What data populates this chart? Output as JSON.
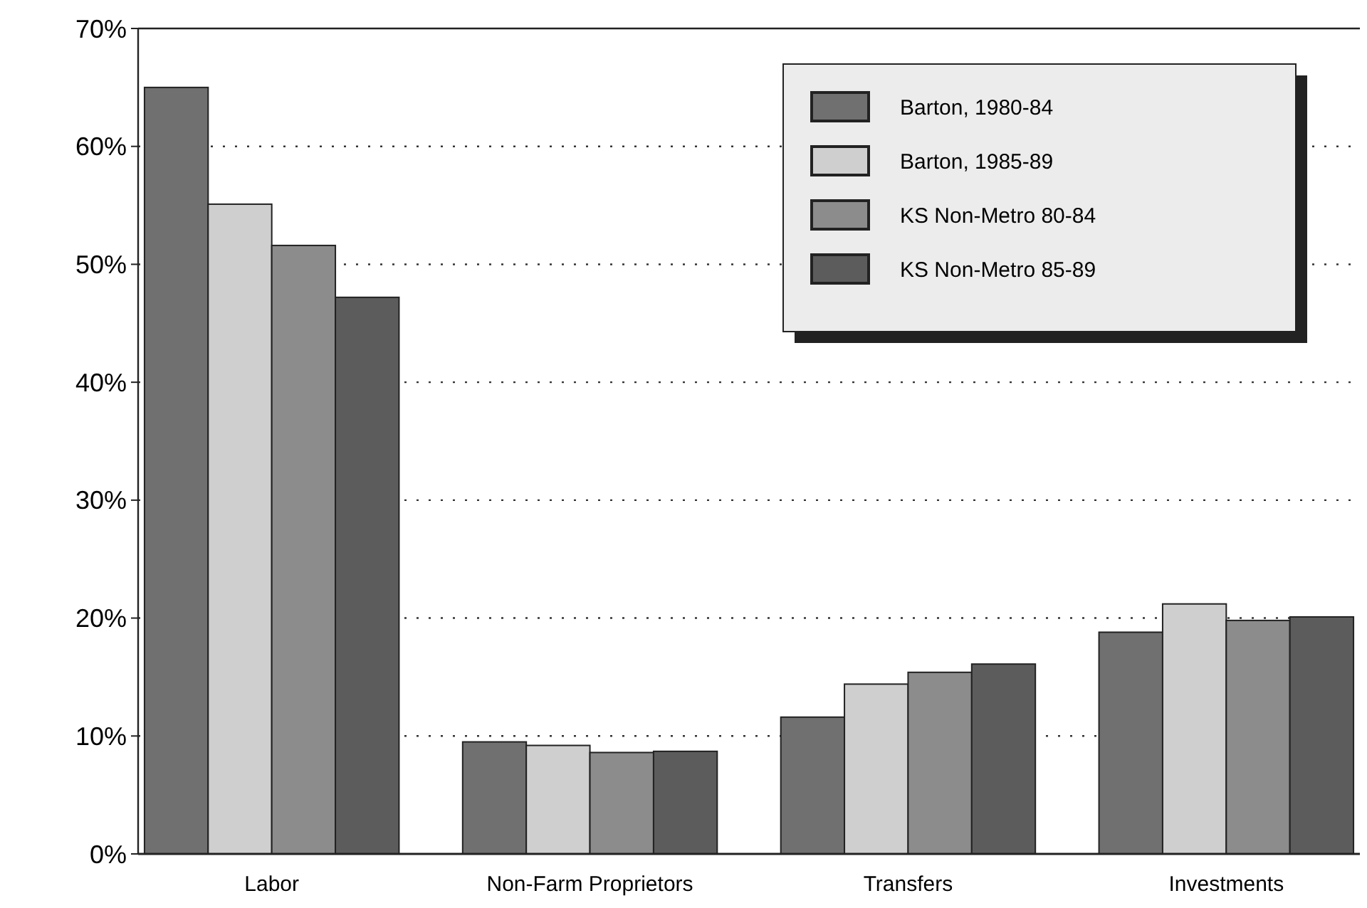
{
  "chart_data": {
    "type": "bar",
    "categories": [
      "Labor",
      "Non-Farm Proprietors",
      "Transfers",
      "Investments"
    ],
    "series": [
      {
        "name": "Barton, 1980-84",
        "color": "#707070",
        "values": [
          65.0,
          9.5,
          11.6,
          18.8
        ]
      },
      {
        "name": "Barton, 1985-89",
        "color": "#cfcfcf",
        "values": [
          55.1,
          9.2,
          14.4,
          21.2
        ]
      },
      {
        "name": "KS Non-Metro 80-84",
        "color": "#8c8c8c",
        "values": [
          51.6,
          8.6,
          15.4,
          19.8
        ]
      },
      {
        "name": "KS Non-Metro 85-89",
        "color": "#5c5c5c",
        "values": [
          47.2,
          8.7,
          16.1,
          20.1
        ]
      }
    ],
    "ylim": [
      0,
      70
    ],
    "yticks": [
      {
        "value": 0,
        "label": "0%"
      },
      {
        "value": 10,
        "label": "10%"
      },
      {
        "value": 20,
        "label": "20%"
      },
      {
        "value": 30,
        "label": "30%"
      },
      {
        "value": 40,
        "label": "40%"
      },
      {
        "value": 50,
        "label": "50%"
      },
      {
        "value": 60,
        "label": "60%"
      },
      {
        "value": 70,
        "label": "70%"
      }
    ],
    "grid": "y",
    "legend": "top right"
  }
}
